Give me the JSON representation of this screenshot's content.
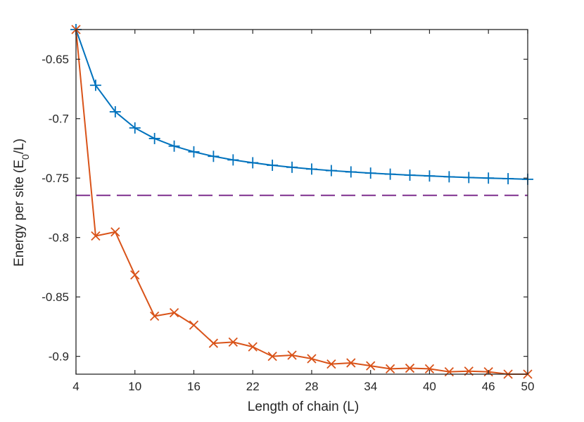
{
  "chart_data": {
    "type": "line",
    "title": "",
    "xlabel": "Length of chain (L)",
    "ylabel": "Energy per site (E",
    "ylabel_subscript": "0",
    "ylabel_suffix": "/L)",
    "xlim": [
      4,
      50
    ],
    "ylim": [
      -0.915,
      -0.625
    ],
    "xticks": [
      4,
      10,
      16,
      22,
      28,
      34,
      40,
      46,
      50
    ],
    "xtick_labels": [
      "4",
      "10",
      "16",
      "22",
      "28",
      "34",
      "40",
      "46",
      "50"
    ],
    "yticks": [
      -0.65,
      -0.7,
      -0.75,
      -0.8,
      -0.85,
      -0.9
    ],
    "ytick_labels": [
      "-0.65",
      "-0.7",
      "-0.75",
      "-0.8",
      "-0.85",
      "-0.9"
    ],
    "grid": false,
    "x": [
      4,
      6,
      8,
      10,
      12,
      14,
      16,
      18,
      20,
      22,
      24,
      26,
      28,
      30,
      32,
      34,
      36,
      38,
      40,
      42,
      44,
      46,
      48,
      50
    ],
    "series": [
      {
        "name": "plus-series",
        "color": "#0072BD",
        "marker": "plus",
        "values": [
          -0.625,
          -0.6719,
          -0.6942,
          -0.7078,
          -0.7167,
          -0.7231,
          -0.7279,
          -0.7317,
          -0.7347,
          -0.7371,
          -0.7392,
          -0.7409,
          -0.7424,
          -0.7437,
          -0.7448,
          -0.7458,
          -0.7467,
          -0.7475,
          -0.7482,
          -0.7489,
          -0.7495,
          -0.75,
          -0.7505,
          -0.751
        ]
      },
      {
        "name": "cross-series",
        "color": "#D95319",
        "marker": "cross",
        "values": [
          -0.625,
          -0.7987,
          -0.7953,
          -0.8315,
          -0.8662,
          -0.8633,
          -0.8737,
          -0.889,
          -0.888,
          -0.892,
          -0.9,
          -0.899,
          -0.902,
          -0.9065,
          -0.9055,
          -0.908,
          -0.9105,
          -0.91,
          -0.9105,
          -0.913,
          -0.9125,
          -0.913,
          -0.915,
          -0.915
        ]
      }
    ],
    "reference_line": {
      "name": "dashed-reference",
      "color": "#7E2F8E",
      "y": -0.7645,
      "style": "dashed"
    }
  }
}
